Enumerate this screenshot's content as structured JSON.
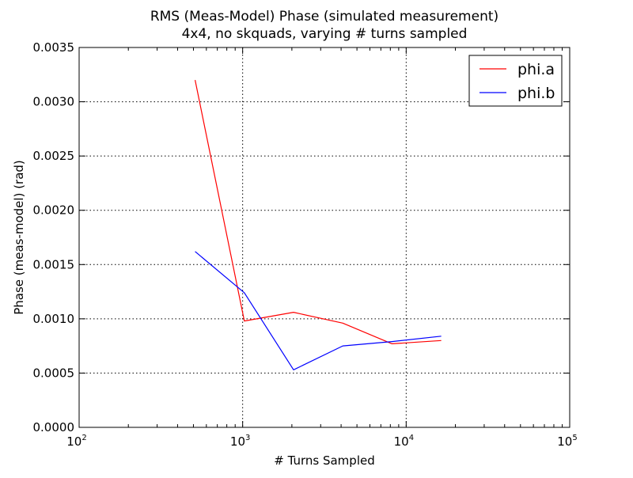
{
  "chart_data": {
    "type": "line",
    "title": "RMS (Meas-Model) Phase (simulated measurement)",
    "subtitle": "4x4, no skquads, varying # turns sampled",
    "xlabel": "# Turns Sampled",
    "ylabel": "Phase (meas-model) (rad)",
    "xscale": "log",
    "xlim": [
      100,
      100000
    ],
    "ylim": [
      0,
      0.0035
    ],
    "grid": true,
    "legend_position": "top-right",
    "xticks": [
      {
        "value": 100,
        "base": "10",
        "exp": "2"
      },
      {
        "value": 1000,
        "base": "10",
        "exp": "3"
      },
      {
        "value": 10000,
        "base": "10",
        "exp": "4"
      },
      {
        "value": 100000,
        "base": "10",
        "exp": "5"
      }
    ],
    "yticks": [
      {
        "value": 0,
        "label": "0.0000"
      },
      {
        "value": 0.0005,
        "label": "0.0005"
      },
      {
        "value": 0.001,
        "label": "0.0010"
      },
      {
        "value": 0.0015,
        "label": "0.0015"
      },
      {
        "value": 0.002,
        "label": "0.0020"
      },
      {
        "value": 0.0025,
        "label": "0.0025"
      },
      {
        "value": 0.003,
        "label": "0.0030"
      },
      {
        "value": 0.0035,
        "label": "0.0035"
      }
    ],
    "x": [
      512,
      1024,
      2048,
      4096,
      8192,
      16384
    ],
    "series": [
      {
        "name": "phi.a",
        "color": "#ff0000",
        "values": [
          0.0032,
          0.00098,
          0.00106,
          0.00096,
          0.00077,
          0.0008
        ]
      },
      {
        "name": "phi.b",
        "color": "#0000ff",
        "values": [
          0.00162,
          0.00124,
          0.00053,
          0.00075,
          0.00079,
          0.00084
        ]
      }
    ]
  }
}
